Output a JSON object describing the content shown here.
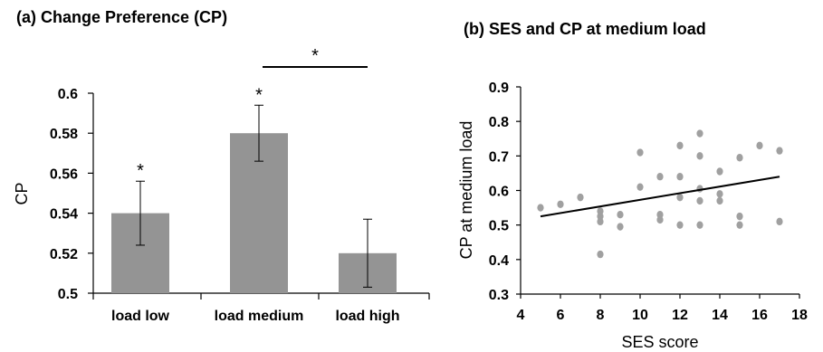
{
  "panel_a": {
    "title": "(a)  Change Preference (CP)",
    "ylabel": "CP",
    "yticks": [
      "0.6",
      "0.58",
      "0.56",
      "0.54",
      "0.52",
      "0.5"
    ],
    "significance_bar_label": "*"
  },
  "panel_b": {
    "title": "(b)  SES and CP at medium load",
    "xlabel": "SES score",
    "ylabel": "CP at medium load",
    "xticks": [
      "4",
      "6",
      "8",
      "10",
      "12",
      "14",
      "16",
      "18"
    ],
    "yticks": [
      "0.9",
      "0.8",
      "0.7",
      "0.6",
      "0.5",
      "0.4",
      "0.3"
    ]
  },
  "colors": {
    "bar": "#949494",
    "point": "#a0a0a0",
    "line": "#000000",
    "axis": "#000000"
  },
  "chart_data": [
    {
      "type": "bar",
      "title": "(a)  Change Preference (CP)",
      "xlabel": "",
      "ylabel": "CP",
      "ylim": [
        0.5,
        0.6
      ],
      "categories": [
        "load low",
        "load medium",
        "load high"
      ],
      "values": [
        0.54,
        0.58,
        0.52
      ],
      "error": [
        0.016,
        0.014,
        0.017
      ],
      "markers": [
        "*",
        "*",
        ""
      ],
      "annotations": [
        {
          "between": [
            "load medium",
            "load high"
          ],
          "label": "*"
        }
      ],
      "grid": false
    },
    {
      "type": "scatter",
      "title": "(b)  SES and CP at medium load",
      "xlabel": "SES score",
      "ylabel": "CP at medium load",
      "xlim": [
        4,
        18
      ],
      "ylim": [
        0.3,
        0.9
      ],
      "points": [
        [
          5,
          0.55
        ],
        [
          6,
          0.56
        ],
        [
          7,
          0.58
        ],
        [
          8,
          0.54
        ],
        [
          8,
          0.525
        ],
        [
          8,
          0.51
        ],
        [
          8,
          0.415
        ],
        [
          9,
          0.53
        ],
        [
          9,
          0.495
        ],
        [
          10,
          0.71
        ],
        [
          10,
          0.61
        ],
        [
          11,
          0.64
        ],
        [
          11,
          0.53
        ],
        [
          11,
          0.515
        ],
        [
          12,
          0.73
        ],
        [
          12,
          0.64
        ],
        [
          12,
          0.58
        ],
        [
          12,
          0.5
        ],
        [
          13,
          0.765
        ],
        [
          13,
          0.7
        ],
        [
          13,
          0.605
        ],
        [
          13,
          0.57
        ],
        [
          13,
          0.5
        ],
        [
          14,
          0.655
        ],
        [
          14,
          0.59
        ],
        [
          14,
          0.57
        ],
        [
          15,
          0.695
        ],
        [
          15,
          0.525
        ],
        [
          15,
          0.5
        ],
        [
          16,
          0.73
        ],
        [
          17,
          0.715
        ],
        [
          17,
          0.51
        ]
      ],
      "trendline": {
        "x": [
          5,
          17
        ],
        "y": [
          0.525,
          0.64
        ]
      },
      "grid": false
    }
  ]
}
